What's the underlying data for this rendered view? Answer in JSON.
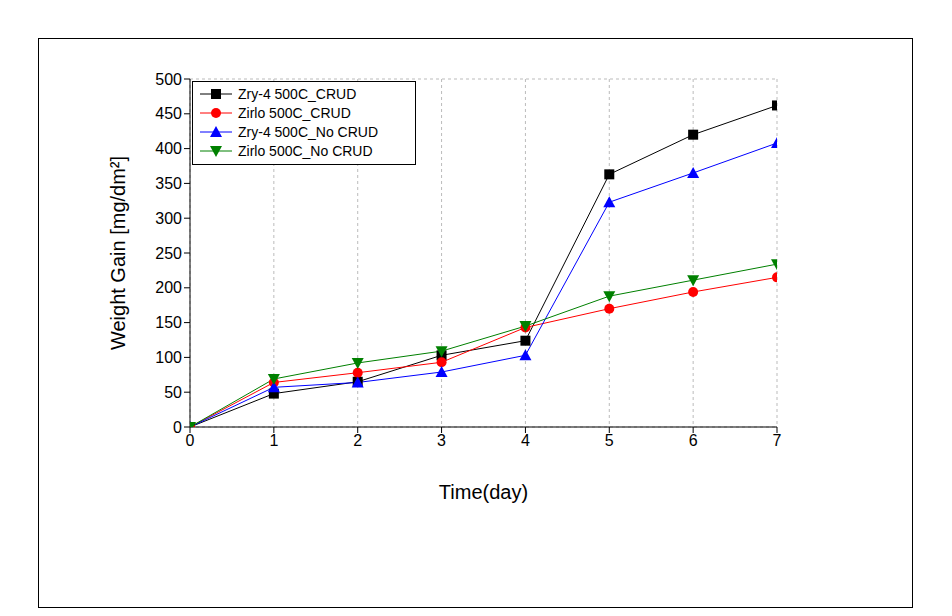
{
  "chart_data": {
    "type": "line",
    "x_label": "Time(day)",
    "y_label": "Weight Gain [mg/dm²]",
    "x": [
      0,
      1,
      2,
      3,
      4,
      5,
      6,
      7
    ],
    "xlim": [
      0,
      7
    ],
    "xticks": [
      0,
      1,
      2,
      3,
      4,
      5,
      6,
      7
    ],
    "ylim": [
      0,
      500
    ],
    "yticks": [
      0,
      50,
      100,
      150,
      200,
      250,
      300,
      350,
      400,
      450,
      500
    ],
    "grid": true,
    "legend": "upper left",
    "series": [
      {
        "name": "Zry-4 500C_CRUD",
        "color": "#000000",
        "marker": "square",
        "values": [
          0,
          48,
          65,
          103,
          124,
          363,
          420,
          462
        ]
      },
      {
        "name": "Zirlo 500C_CRUD",
        "color": "#ff0000",
        "marker": "circle",
        "values": [
          0,
          64,
          78,
          93,
          143,
          170,
          194,
          215
        ]
      },
      {
        "name": "Zry-4 500C_No CRUD",
        "color": "#0000ff",
        "marker": "triangle-up",
        "values": [
          0,
          57,
          64,
          79,
          103,
          323,
          365,
          408
        ]
      },
      {
        "name": "Zirlo 500C_No CRUD",
        "color": "#008000",
        "marker": "triangle-down",
        "values": [
          0,
          69,
          92,
          109,
          145,
          188,
          211,
          234
        ]
      }
    ]
  }
}
